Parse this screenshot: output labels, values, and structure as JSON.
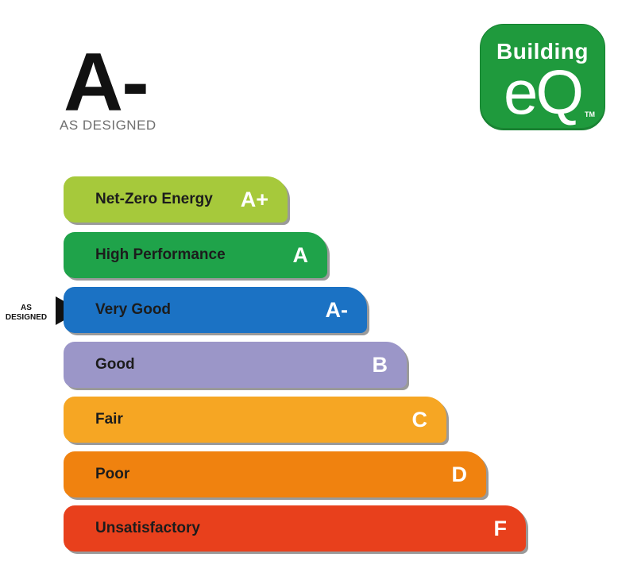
{
  "rating": {
    "grade": "A-",
    "subtitle": "AS DESIGNED"
  },
  "logo": {
    "word": "Building",
    "eq": "eQ",
    "tm": "TM",
    "color": "#1f9a3d"
  },
  "marker": {
    "line1": "AS",
    "line2": "DESIGNED",
    "icon": "triangle-pointer-icon"
  },
  "scale": [
    {
      "label": "Net-Zero Energy",
      "letter": "A+",
      "color": "#a6c93b"
    },
    {
      "label": "High Performance",
      "letter": "A",
      "color": "#1fa34a"
    },
    {
      "label": "Very Good",
      "letter": "A-",
      "color": "#1b72c4"
    },
    {
      "label": "Good",
      "letter": "B",
      "color": "#9b96c8"
    },
    {
      "label": "Fair",
      "letter": "C",
      "color": "#f6a623"
    },
    {
      "label": "Poor",
      "letter": "D",
      "color": "#f0820f"
    },
    {
      "label": "Unsatisfactory",
      "letter": "F",
      "color": "#e8401c"
    }
  ]
}
